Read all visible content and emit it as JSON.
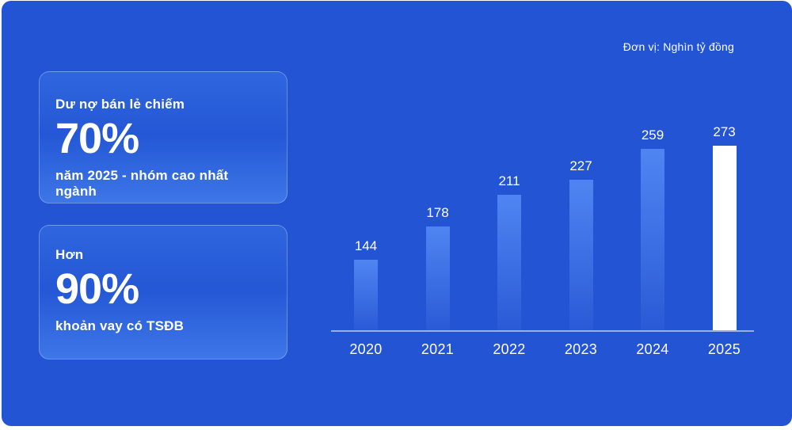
{
  "unit_label": "Đơn vị: Nghìn tỷ đồng",
  "cards": [
    {
      "top": "Dư nợ bán lẻ chiếm",
      "big": "70%",
      "bottom": "năm 2025 - nhóm cao nhất ngành"
    },
    {
      "top": "Hơn",
      "big": "90%",
      "bottom": "khoản vay có TSĐB"
    }
  ],
  "chart_data": {
    "type": "bar",
    "categories": [
      "2020",
      "2021",
      "2022",
      "2023",
      "2024",
      "2025"
    ],
    "values": [
      144,
      178,
      211,
      227,
      259,
      273
    ],
    "title": "",
    "xlabel": "",
    "ylabel": "Nghìn tỷ đồng",
    "ylim": [
      70,
      285
    ],
    "grid": false,
    "legend": false,
    "data_labels": true,
    "highlight_index": 5
  },
  "colors": {
    "background": "#2254d4",
    "bar_gradient_top": "#4f85f2",
    "bar_gradient_bottom": "#2a5ad6",
    "highlight_bar": "#ffffff",
    "text": "#ffffff",
    "axis_line": "rgba(255,255,255,0.55)",
    "card_border": "rgba(255,255,255,0.28)"
  }
}
